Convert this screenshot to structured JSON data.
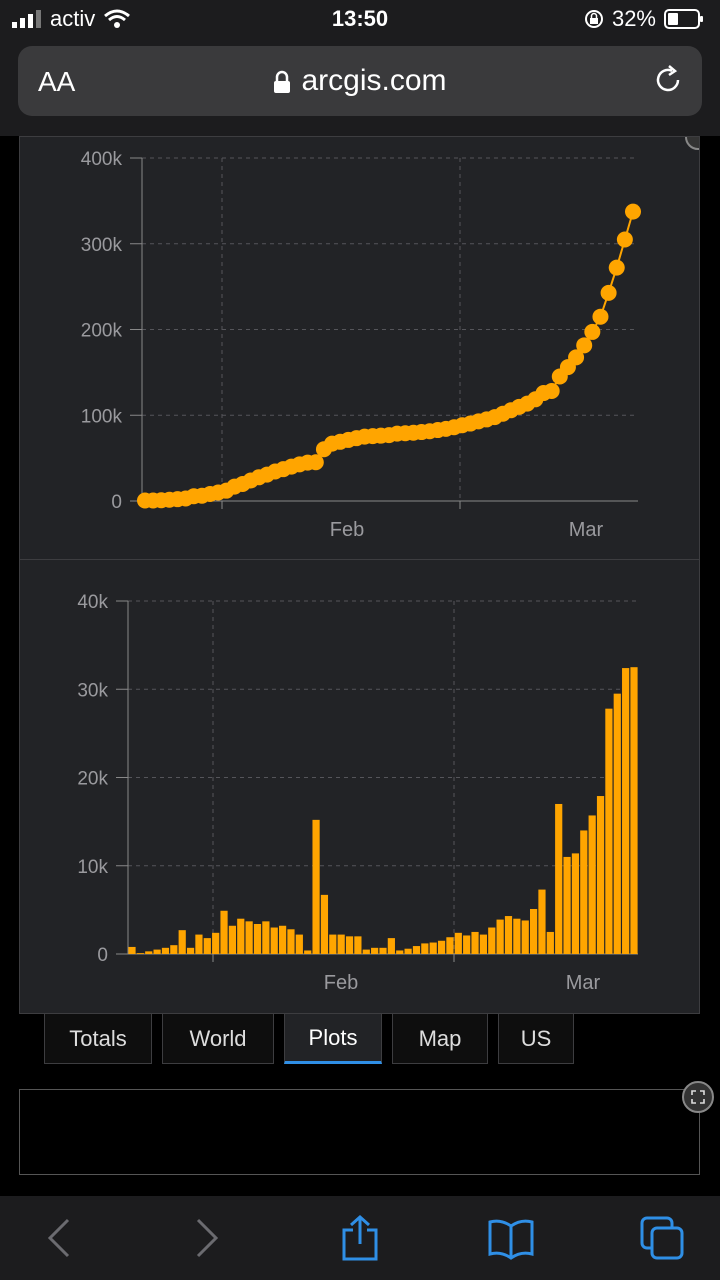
{
  "status": {
    "carrier": "activ",
    "time": "13:50",
    "battery": "32%"
  },
  "browser": {
    "text_size_label": "AA",
    "url": "arcgis.com",
    "icons": [
      "lock-icon",
      "reload-icon"
    ]
  },
  "colors": {
    "accent": "#ffa500",
    "tab_active": "#2f8fe6",
    "panel": "#222326"
  },
  "chart_data": [
    {
      "type": "line",
      "title": "",
      "xlabel": "",
      "ylabel": "",
      "x_ticks": [
        "Feb",
        "Mar"
      ],
      "y_ticks": [
        "0",
        "100k",
        "200k",
        "300k",
        "400k"
      ],
      "ylim": [
        0,
        400000
      ],
      "grid": true,
      "series": [
        {
          "values": [
            555,
            654,
            941,
            1434,
            2118,
            2927,
            5578,
            6166,
            8234,
            9927,
            12038,
            16787,
            19881,
            23892,
            27636,
            30818,
            34392,
            37121,
            40151,
            42763,
            44803,
            45222,
            60370,
            66887,
            69032,
            71226,
            73260,
            75138,
            75641,
            76199,
            76843,
            78599,
            78985,
            79570,
            80415,
            81397,
            82756,
            84124,
            86013,
            88371,
            90309,
            92844,
            95124,
            97886,
            101800,
            105847,
            109821,
            113590,
            118620,
            125875,
            128343,
            145193,
            156099,
            167511,
            181546,
            197168,
            214915,
            242713,
            272167,
            304979,
            337489
          ]
        }
      ]
    },
    {
      "type": "bar",
      "title": "",
      "xlabel": "",
      "ylabel": "",
      "x_ticks": [
        "Feb",
        "Mar"
      ],
      "y_ticks": [
        "0",
        "10k",
        "20k",
        "30k",
        "40k"
      ],
      "ylim": [
        0,
        40000
      ],
      "grid": true,
      "series": [
        {
          "values": [
            800,
            100,
            300,
            500,
            700,
            1000,
            2700,
            700,
            2200,
            1800,
            2400,
            4900,
            3200,
            4000,
            3700,
            3400,
            3700,
            3000,
            3200,
            2800,
            2200,
            400,
            15200,
            6700,
            2200,
            2200,
            2000,
            2000,
            500,
            700,
            700,
            1800,
            400,
            600,
            900,
            1200,
            1300,
            1500,
            1900,
            2400,
            2100,
            2500,
            2200,
            3000,
            3900,
            4300,
            4000,
            3800,
            5100,
            7300,
            2500,
            17000,
            11000,
            11400,
            14000,
            15700,
            17900,
            27800,
            29500,
            32400,
            32500
          ]
        }
      ]
    }
  ],
  "tabs": [
    {
      "label": "Totals",
      "active": false
    },
    {
      "label": "World",
      "active": false
    },
    {
      "label": "Plots",
      "active": true
    },
    {
      "label": "Map",
      "active": false
    },
    {
      "label": "US",
      "active": false
    }
  ],
  "toolbar_icons": [
    "back-icon",
    "forward-icon",
    "share-icon",
    "bookmarks-icon",
    "tabs-icon"
  ]
}
